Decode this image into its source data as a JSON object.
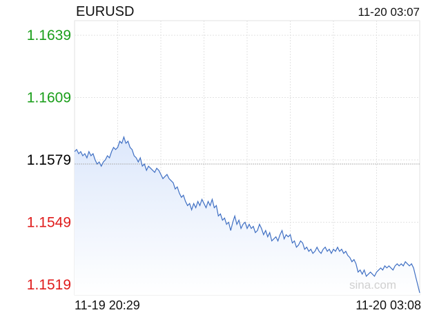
{
  "header": {
    "symbol": "EURUSD",
    "timestamp": "11-20 03:07"
  },
  "footer": {
    "start_time": "11-19 20:29",
    "end_time": "11-20 03:08"
  },
  "watermark": "sina.com",
  "colors": {
    "line": "#3f6fc3",
    "fill_top": "#dde8fb",
    "up": "#1a9e1a",
    "base": "#000000",
    "down": "#e01b1b",
    "grid": "#e2e2e2",
    "baseline": "#b0b0b0"
  },
  "chart_data": {
    "type": "area",
    "title": "EURUSD",
    "xlabel": "",
    "ylabel": "",
    "ylim": [
      1.1514,
      1.1646
    ],
    "baseline": 1.1577,
    "yticks": [
      {
        "value": 1.1639,
        "label": "1.1639",
        "color": "up"
      },
      {
        "value": 1.1609,
        "label": "1.1609",
        "color": "up"
      },
      {
        "value": 1.1579,
        "label": "1.1579",
        "color": "base"
      },
      {
        "value": 1.1549,
        "label": "1.1549",
        "color": "down"
      },
      {
        "value": 1.1519,
        "label": "1.1519",
        "color": "down"
      }
    ],
    "x_range": [
      "11-19 20:29",
      "11-20 03:08"
    ],
    "grid": true,
    "series": [
      {
        "values": [
          1.1583,
          1.1584,
          1.1582,
          1.1583,
          1.1581,
          1.1582,
          1.158,
          1.1583,
          1.1581,
          1.1582,
          1.1579,
          1.1577,
          1.1578,
          1.1576,
          1.1578,
          1.1579,
          1.1581,
          1.158,
          1.1583,
          1.1585,
          1.1584,
          1.1585,
          1.1588,
          1.1587,
          1.159,
          1.1587,
          1.1588,
          1.1585,
          1.1584,
          1.1581,
          1.158,
          1.1578,
          1.158,
          1.1576,
          1.1577,
          1.1574,
          1.1576,
          1.1575,
          1.1574,
          1.1573,
          1.1575,
          1.1574,
          1.1572,
          1.157,
          1.1571,
          1.1572,
          1.157,
          1.1569,
          1.1568,
          1.1565,
          1.1566,
          1.1563,
          1.1561,
          1.1562,
          1.1559,
          1.1557,
          1.1558,
          1.1555,
          1.1558,
          1.1556,
          1.1559,
          1.1557,
          1.156,
          1.1558,
          1.1556,
          1.1559,
          1.1557,
          1.156,
          1.1556,
          1.1557,
          1.1552,
          1.1553,
          1.155,
          1.1551,
          1.1548,
          1.1549,
          1.1545,
          1.1549,
          1.1552,
          1.1548,
          1.155,
          1.1546,
          1.1548,
          1.1549,
          1.1546,
          1.1548,
          1.1546,
          1.1547,
          1.1544,
          1.1545,
          1.1548,
          1.1546,
          1.1543,
          1.1545,
          1.1542,
          1.1544,
          1.154,
          1.1541,
          1.1542,
          1.154,
          1.1543,
          1.1545,
          1.1541,
          1.1543,
          1.1542,
          1.1543,
          1.1539,
          1.154,
          1.1537,
          1.1538,
          1.154,
          1.1539,
          1.1536,
          1.1537,
          1.1535,
          1.1536,
          1.1534,
          1.1535,
          1.1537,
          1.1535,
          1.1534,
          1.1536,
          1.1537,
          1.1535,
          1.1536,
          1.1534,
          1.1536,
          1.1535,
          1.1537,
          1.1535,
          1.1536,
          1.1534,
          1.1535,
          1.1533,
          1.1532,
          1.153,
          1.1531,
          1.1529,
          1.1525,
          1.1526,
          1.1524,
          1.1526,
          1.1523,
          1.1524,
          1.1525,
          1.1524,
          1.1523,
          1.1525,
          1.1526,
          1.1527,
          1.1526,
          1.1528,
          1.1527,
          1.1528,
          1.1527,
          1.1526,
          1.1528,
          1.1529,
          1.1528,
          1.1529,
          1.1528,
          1.153,
          1.1529,
          1.1528,
          1.1529,
          1.1527,
          1.1523,
          1.1519,
          1.1515
        ]
      }
    ]
  }
}
